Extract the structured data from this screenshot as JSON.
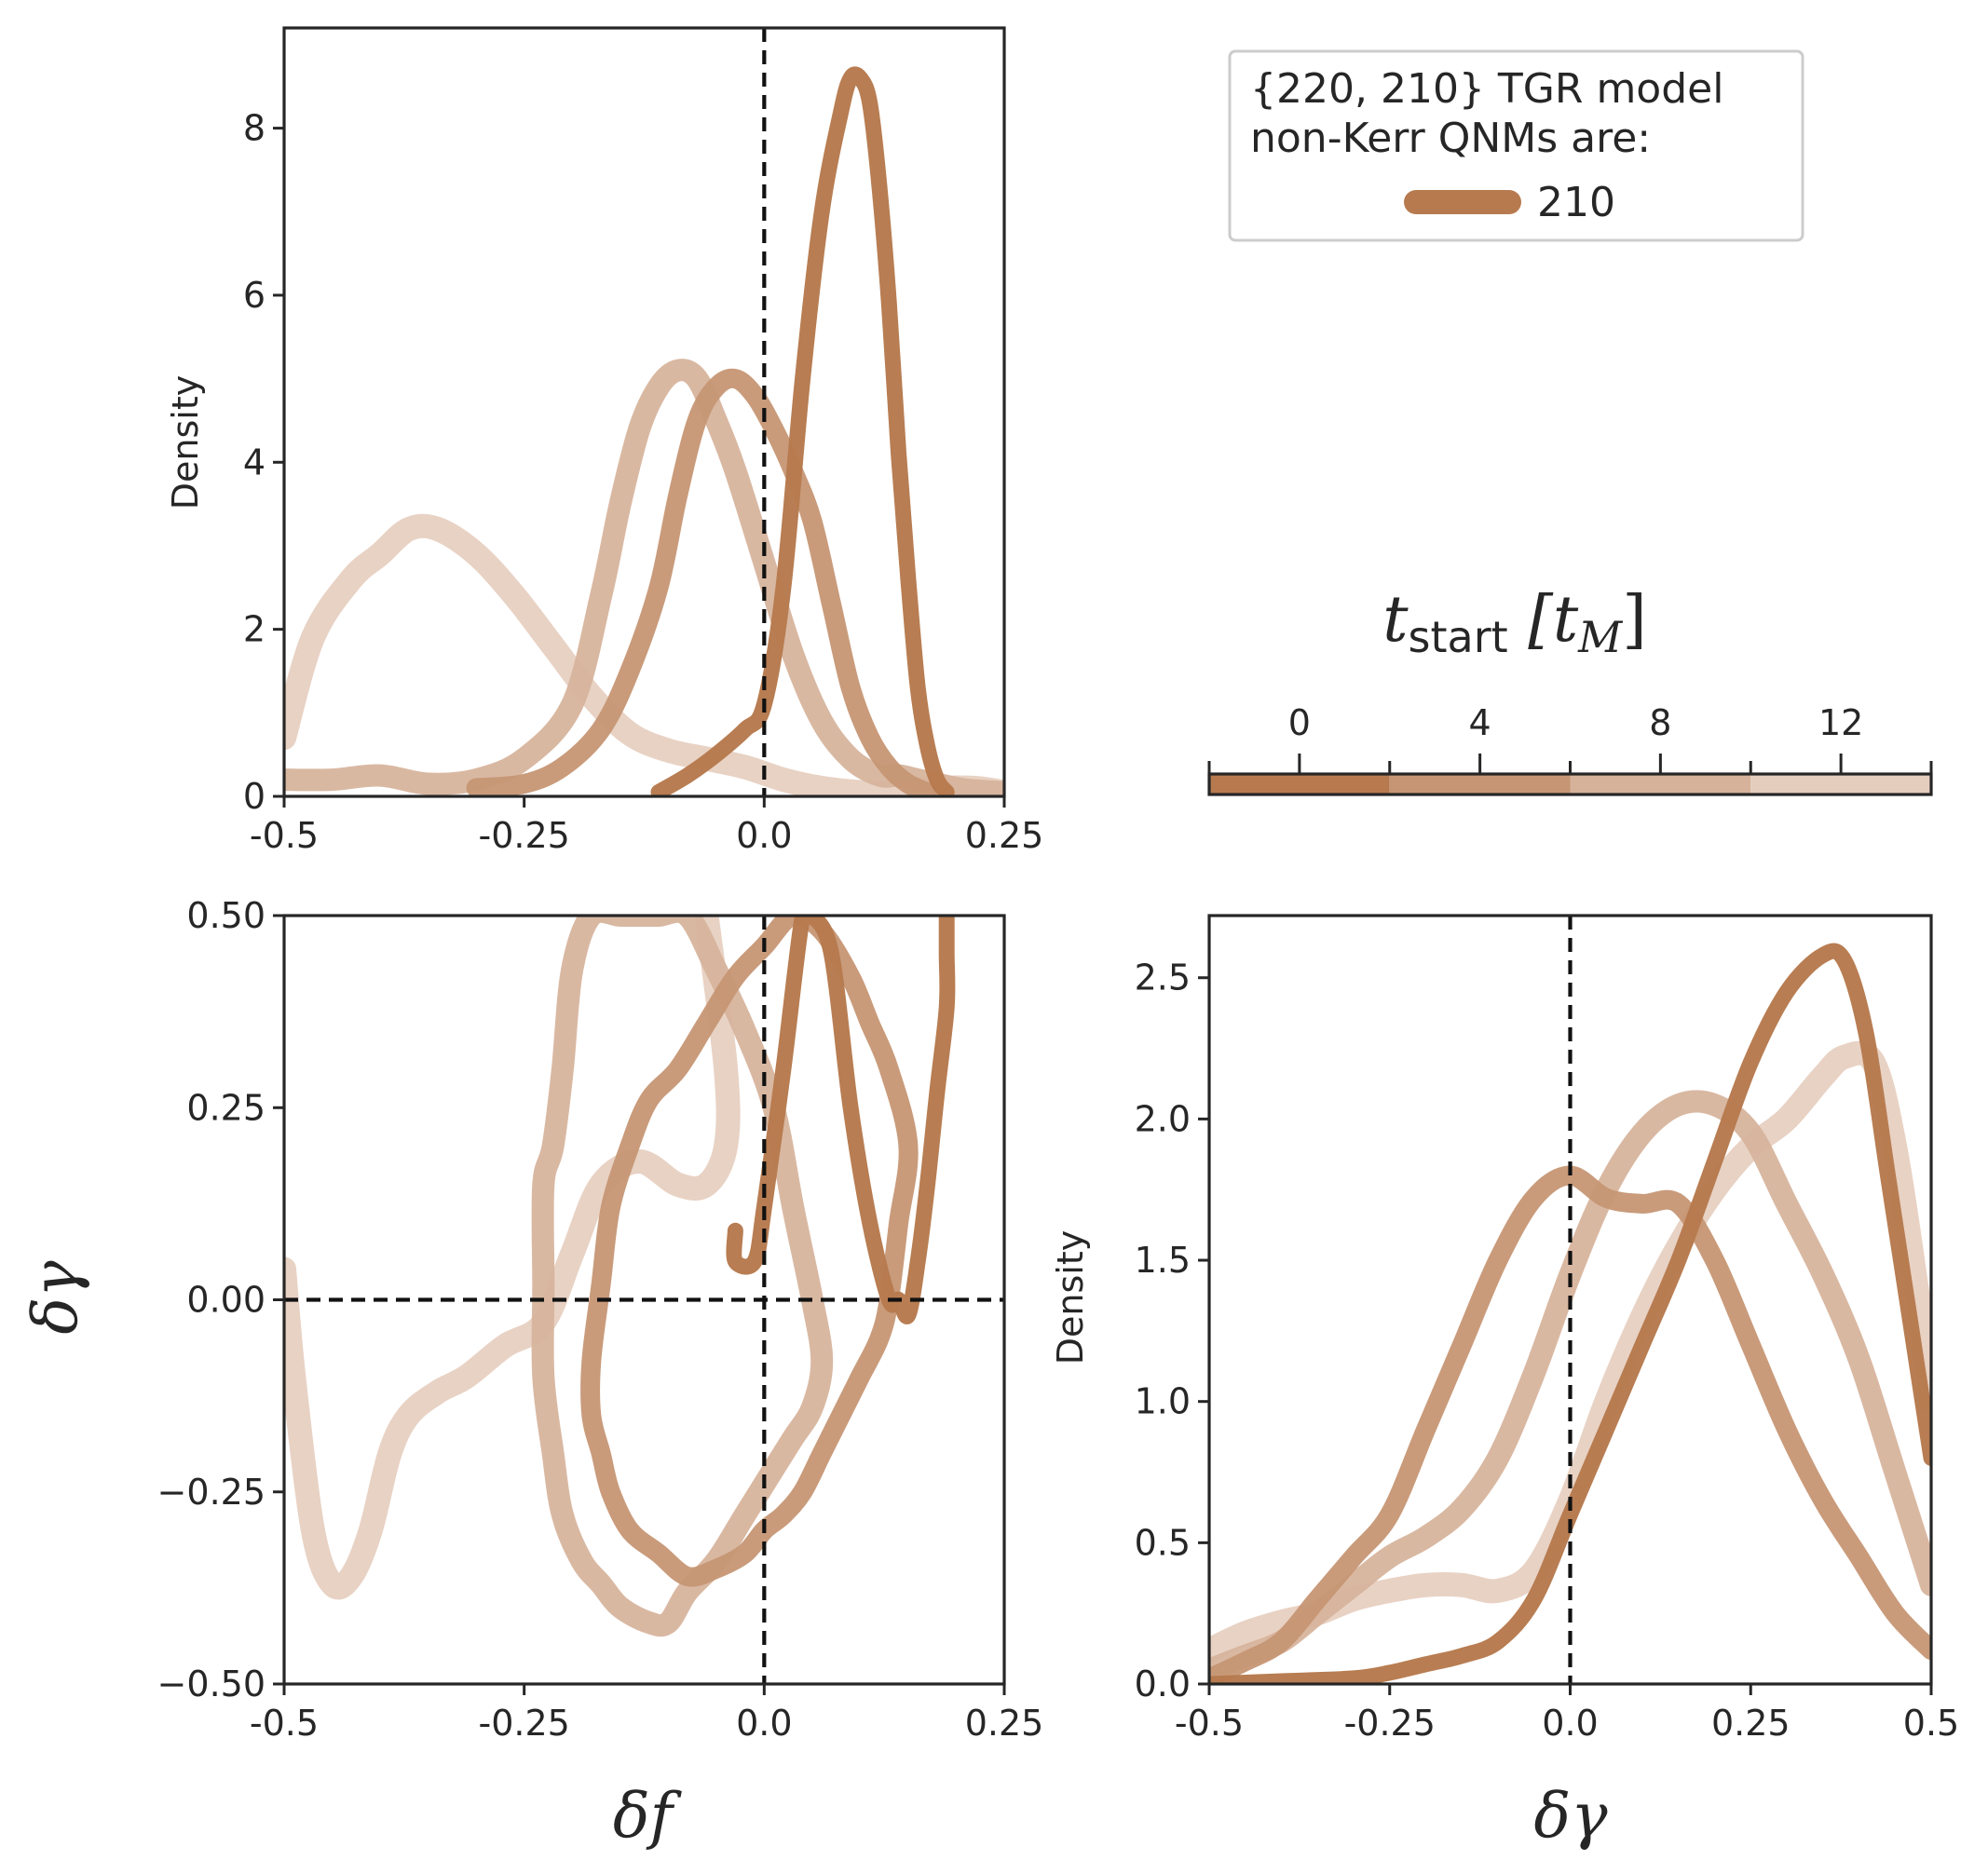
{
  "colors": {
    "t0": "#b77a4f",
    "t4": "#c69674",
    "t8": "#d6b29a",
    "t12": "#e5cdbe",
    "axis": "#262626",
    "ref": "#111111"
  },
  "legend": {
    "title_line1": "{220, 210} TGR model",
    "title_line2": "non-Kerr QNMs are:",
    "entry": "210"
  },
  "colorbar": {
    "label_main": "t",
    "label_sub": "start",
    "label_unit_open": "[t",
    "label_unit_sub": "M",
    "label_unit_close": "]",
    "ticks": [
      "0",
      "4",
      "8",
      "12"
    ]
  },
  "chart_data": [
    {
      "panel": "top-left",
      "type": "line",
      "xlabel": "",
      "ylabel": "Density",
      "xlim": [
        -0.5,
        0.25
      ],
      "ylim": [
        0,
        9.2
      ],
      "xticks": [
        "-0.5",
        "-0.25",
        "0.0",
        "0.25"
      ],
      "yticks": [
        "0",
        "2",
        "4",
        "6",
        "8"
      ],
      "reference_line": {
        "x": 0.0
      },
      "series": [
        {
          "t_start": 12,
          "x": [
            -0.5,
            -0.47,
            -0.43,
            -0.4,
            -0.37,
            -0.34,
            -0.3,
            -0.26,
            -0.22,
            -0.18,
            -0.14,
            -0.1,
            -0.06,
            -0.02,
            0.02,
            0.06,
            0.1,
            0.14,
            0.18,
            0.22,
            0.25
          ],
          "y": [
            0.7,
            1.9,
            2.6,
            2.9,
            3.2,
            3.2,
            2.9,
            2.4,
            1.8,
            1.2,
            0.75,
            0.55,
            0.45,
            0.35,
            0.2,
            0.1,
            0.05,
            0.05,
            0.1,
            0.1,
            0.05
          ]
        },
        {
          "t_start": 8,
          "x": [
            -0.5,
            -0.45,
            -0.4,
            -0.35,
            -0.3,
            -0.25,
            -0.2,
            -0.17,
            -0.15,
            -0.13,
            -0.11,
            -0.09,
            -0.07,
            -0.05,
            -0.03,
            0.0,
            0.03,
            0.06,
            0.09,
            0.12,
            0.14,
            0.16,
            0.18,
            0.21,
            0.25
          ],
          "y": [
            0.2,
            0.2,
            0.25,
            0.15,
            0.2,
            0.45,
            1.1,
            2.4,
            3.5,
            4.4,
            4.9,
            5.1,
            5.0,
            4.5,
            3.9,
            2.8,
            1.7,
            0.9,
            0.45,
            0.25,
            0.25,
            0.2,
            0.15,
            0.08,
            0.05
          ]
        },
        {
          "t_start": 4,
          "x": [
            -0.3,
            -0.25,
            -0.21,
            -0.17,
            -0.14,
            -0.11,
            -0.09,
            -0.07,
            -0.05,
            -0.03,
            -0.01,
            0.01,
            0.03,
            0.05,
            0.07,
            0.09,
            0.11,
            0.13,
            0.15,
            0.17
          ],
          "y": [
            0.1,
            0.15,
            0.35,
            0.8,
            1.5,
            2.5,
            3.6,
            4.5,
            4.9,
            5.0,
            4.8,
            4.4,
            3.9,
            3.3,
            2.3,
            1.3,
            0.7,
            0.35,
            0.15,
            0.05
          ]
        },
        {
          "t_start": 0,
          "x": [
            -0.11,
            -0.08,
            -0.05,
            -0.02,
            0.0,
            0.02,
            0.04,
            0.06,
            0.08,
            0.09,
            0.1,
            0.11,
            0.12,
            0.13,
            0.14,
            0.15,
            0.16,
            0.17,
            0.18,
            0.19
          ],
          "y": [
            0.05,
            0.25,
            0.5,
            0.8,
            1.1,
            2.5,
            5.0,
            7.0,
            8.2,
            8.6,
            8.6,
            8.3,
            7.3,
            5.9,
            4.1,
            2.6,
            1.3,
            0.6,
            0.2,
            0.05
          ]
        }
      ]
    },
    {
      "panel": "bottom-left",
      "type": "line",
      "xlabel": "δf",
      "ylabel": "δγ",
      "xlim": [
        -0.5,
        0.25
      ],
      "ylim": [
        -0.5,
        0.5
      ],
      "xticks": [
        "-0.5",
        "-0.25",
        "0.0",
        "0.25"
      ],
      "yticks": [
        "0.50",
        "0.25",
        "0.00",
        "−0.25",
        "−0.50"
      ],
      "reference_line": {
        "x": 0.0,
        "y": 0.0
      },
      "series": [
        {
          "t_start": 12,
          "closed": false,
          "x": [
            -0.5,
            -0.49,
            -0.47,
            -0.45,
            -0.43,
            -0.41,
            -0.39,
            -0.37,
            -0.34,
            -0.31,
            -0.27,
            -0.23,
            -0.2,
            -0.17,
            -0.13,
            -0.09,
            -0.06,
            -0.04,
            -0.04,
            -0.06
          ],
          "y": [
            0.04,
            -0.1,
            -0.3,
            -0.37,
            -0.36,
            -0.3,
            -0.2,
            -0.15,
            -0.12,
            -0.1,
            -0.06,
            -0.03,
            0.06,
            0.15,
            0.18,
            0.15,
            0.15,
            0.2,
            0.3,
            0.5
          ]
        },
        {
          "t_start": 8,
          "closed": true,
          "x": [
            -0.23,
            -0.22,
            -0.21,
            -0.2,
            -0.18,
            -0.15,
            -0.13,
            -0.11,
            -0.08,
            -0.05,
            -0.02,
            0.01,
            0.03,
            0.05,
            0.06,
            0.05,
            0.03,
            0.01,
            -0.02,
            -0.05,
            -0.08,
            -0.1,
            -0.12,
            -0.15,
            -0.17,
            -0.19,
            -0.21,
            -0.22,
            -0.23,
            -0.23
          ],
          "y": [
            0.15,
            0.2,
            0.3,
            0.43,
            0.5,
            0.5,
            0.5,
            0.5,
            0.5,
            0.43,
            0.35,
            0.25,
            0.12,
            0.0,
            -0.08,
            -0.14,
            -0.18,
            -0.22,
            -0.28,
            -0.34,
            -0.38,
            -0.42,
            -0.42,
            -0.4,
            -0.37,
            -0.34,
            -0.28,
            -0.2,
            -0.1,
            0.02
          ]
        },
        {
          "t_start": 4,
          "closed": true,
          "x": [
            -0.18,
            -0.17,
            -0.16,
            -0.14,
            -0.12,
            -0.09,
            -0.06,
            -0.03,
            0.0,
            0.03,
            0.06,
            0.09,
            0.11,
            0.13,
            0.15,
            0.14,
            0.13,
            0.12,
            0.1,
            0.08,
            0.06,
            0.04,
            0.02,
            0.0,
            -0.02,
            -0.05,
            -0.08,
            -0.11,
            -0.14,
            -0.16,
            -0.17,
            -0.18
          ],
          "y": [
            -0.08,
            0.02,
            0.12,
            0.2,
            0.26,
            0.3,
            0.36,
            0.42,
            0.46,
            0.5,
            0.48,
            0.42,
            0.36,
            0.3,
            0.2,
            0.1,
            0.0,
            -0.05,
            -0.1,
            -0.15,
            -0.2,
            -0.25,
            -0.28,
            -0.3,
            -0.33,
            -0.35,
            -0.36,
            -0.33,
            -0.3,
            -0.25,
            -0.2,
            -0.15
          ]
        },
        {
          "t_start": 0,
          "closed": false,
          "x": [
            -0.03,
            -0.03,
            -0.01,
            0.0,
            0.02,
            0.04,
            0.05,
            0.07,
            0.09,
            0.11,
            0.13,
            0.14,
            0.15,
            0.16,
            0.17,
            0.18,
            0.19,
            0.19,
            0.19
          ],
          "y": [
            0.09,
            0.05,
            0.05,
            0.12,
            0.3,
            0.5,
            0.5,
            0.45,
            0.25,
            0.1,
            0.0,
            0.0,
            -0.02,
            0.05,
            0.15,
            0.27,
            0.38,
            0.45,
            0.5
          ]
        }
      ]
    },
    {
      "panel": "bottom-right",
      "type": "line",
      "xlabel": "δγ",
      "ylabel": "Density",
      "xlim": [
        -0.5,
        0.5
      ],
      "ylim": [
        0,
        2.72
      ],
      "xticks": [
        "-0.5",
        "-0.25",
        "0.0",
        "0.25",
        "0.5"
      ],
      "yticks": [
        "0.0",
        "0.5",
        "1.0",
        "1.5",
        "2.0",
        "2.5"
      ],
      "reference_line": {
        "x": 0.0
      },
      "series": [
        {
          "t_start": 12,
          "x": [
            -0.5,
            -0.45,
            -0.4,
            -0.35,
            -0.3,
            -0.25,
            -0.2,
            -0.15,
            -0.1,
            -0.05,
            0.0,
            0.05,
            0.1,
            0.15,
            0.2,
            0.25,
            0.3,
            0.35,
            0.38,
            0.42,
            0.45,
            0.48,
            0.5
          ],
          "y": [
            0.12,
            0.18,
            0.22,
            0.25,
            0.3,
            0.33,
            0.35,
            0.35,
            0.33,
            0.4,
            0.65,
            1.0,
            1.3,
            1.55,
            1.75,
            1.9,
            2.0,
            2.15,
            2.22,
            2.2,
            1.9,
            1.4,
            1.0
          ]
        },
        {
          "t_start": 8,
          "x": [
            -0.5,
            -0.45,
            -0.4,
            -0.35,
            -0.3,
            -0.25,
            -0.2,
            -0.15,
            -0.1,
            -0.05,
            0.0,
            0.05,
            0.1,
            0.15,
            0.2,
            0.25,
            0.3,
            0.35,
            0.4,
            0.45,
            0.5
          ],
          "y": [
            0.05,
            0.1,
            0.15,
            0.25,
            0.35,
            0.45,
            0.52,
            0.62,
            0.8,
            1.1,
            1.45,
            1.75,
            1.95,
            2.05,
            2.05,
            1.95,
            1.7,
            1.45,
            1.15,
            0.75,
            0.35
          ]
        },
        {
          "t_start": 4,
          "x": [
            -0.5,
            -0.45,
            -0.4,
            -0.35,
            -0.3,
            -0.25,
            -0.2,
            -0.15,
            -0.1,
            -0.05,
            0.0,
            0.05,
            0.1,
            0.15,
            0.2,
            0.25,
            0.3,
            0.35,
            0.4,
            0.45,
            0.5
          ],
          "y": [
            0.02,
            0.08,
            0.15,
            0.3,
            0.45,
            0.6,
            0.9,
            1.2,
            1.5,
            1.72,
            1.8,
            1.72,
            1.7,
            1.7,
            1.5,
            1.2,
            0.9,
            0.65,
            0.45,
            0.25,
            0.12
          ]
        },
        {
          "t_start": 0,
          "x": [
            -0.5,
            -0.4,
            -0.3,
            -0.25,
            -0.2,
            -0.15,
            -0.1,
            -0.05,
            0.0,
            0.05,
            0.1,
            0.15,
            0.2,
            0.25,
            0.3,
            0.35,
            0.38,
            0.41,
            0.44,
            0.47,
            0.5
          ],
          "y": [
            0.0,
            0.01,
            0.02,
            0.04,
            0.07,
            0.1,
            0.15,
            0.3,
            0.6,
            0.9,
            1.2,
            1.5,
            1.85,
            2.2,
            2.45,
            2.58,
            2.56,
            2.3,
            1.8,
            1.3,
            0.8
          ]
        }
      ]
    }
  ]
}
